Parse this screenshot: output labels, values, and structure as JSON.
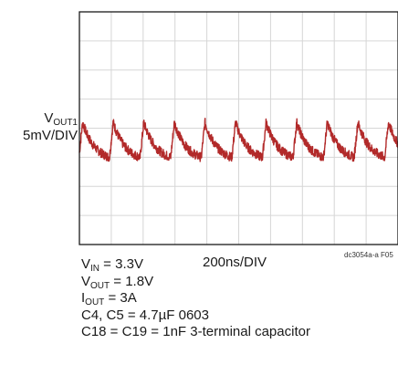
{
  "chart_data": {
    "type": "line",
    "title": "",
    "xlabel": "200ns/DIV",
    "ylabel": {
      "main": "V",
      "sub": "OUT1",
      "scale": "5mV/DIV"
    },
    "x_divisions": 10,
    "y_divisions": 8,
    "xlim": [
      0,
      2000
    ],
    "x_unit": "ns",
    "ylim": [
      -20,
      20
    ],
    "y_unit": "mV",
    "grid": true,
    "series": [
      {
        "color": "#b22a2a",
        "description": "ripple waveform",
        "period_ns": 192,
        "first_peak_ns": 20,
        "peak_mV": 1.0,
        "trough_mV": -5.0,
        "noise_mV": 0.8
      }
    ],
    "figure_id": "dc3054a-a F05"
  },
  "conditions": [
    {
      "main": "V",
      "sub": "IN",
      "rest": " = 3.3V"
    },
    {
      "main": "V",
      "sub": "OUT",
      "rest": " = 1.8V"
    },
    {
      "main": "I",
      "sub": "OUT",
      "rest": " = 3A"
    },
    {
      "main": "C4, C5 = 4.7µF 0603",
      "sub": "",
      "rest": ""
    },
    {
      "main": "C18 = C19 = 1nF 3-terminal capacitor",
      "sub": "",
      "rest": ""
    }
  ],
  "colors": {
    "trace": "#b22a2a",
    "grid": "#d6d6d6",
    "frame": "#1a1a1a"
  }
}
